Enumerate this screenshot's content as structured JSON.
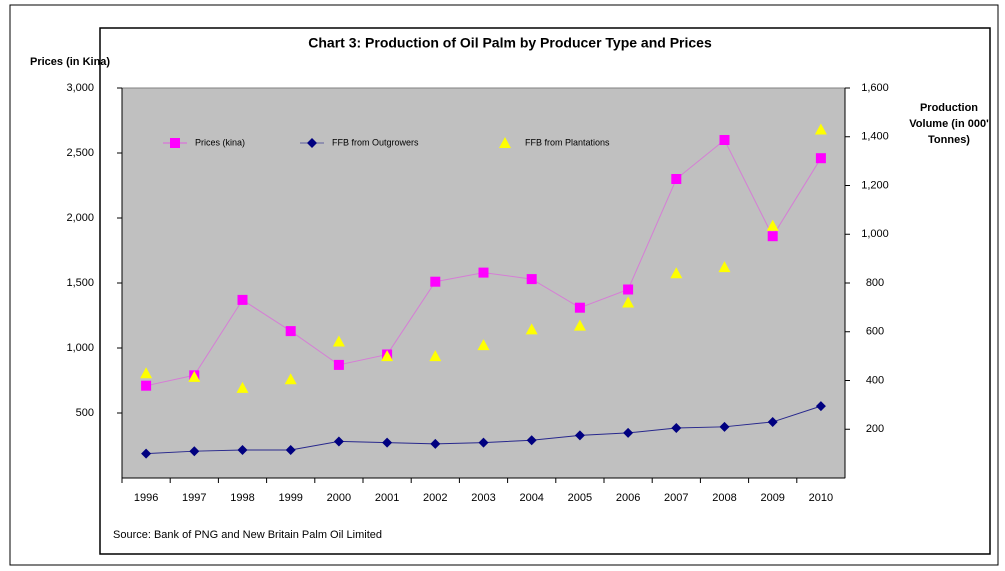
{
  "chart_data": {
    "type": "line",
    "title": "Chart 3: Production of Oil Palm by Producer Type and Prices",
    "y_label": "Prices (in Kina)",
    "y2_label": "Production Volume (in 000' Tonnes)",
    "source": "Source: Bank of PNG and New Britain Palm Oil Limited",
    "categories": [
      "1996",
      "1997",
      "1998",
      "1999",
      "2000",
      "2001",
      "2002",
      "2003",
      "2004",
      "2005",
      "2006",
      "2007",
      "2008",
      "2009",
      "2010"
    ],
    "ylim": [
      0,
      3000
    ],
    "yticks": [
      500,
      {
        "value": 1000,
        "label": "1,000"
      },
      {
        "value": 1500,
        "label": "1,500"
      },
      {
        "value": 2000,
        "label": "2,000"
      },
      {
        "value": 2500,
        "label": "2,500"
      },
      {
        "value": 3000,
        "label": "3,000"
      }
    ],
    "y2lim": [
      0,
      1600
    ],
    "y2ticks": [
      200,
      400,
      600,
      800,
      {
        "value": 1000,
        "label": "1,000"
      },
      {
        "value": 1200,
        "label": "1,200"
      },
      {
        "value": 1400,
        "label": "1,400"
      },
      {
        "value": 1600,
        "label": "1,600"
      }
    ],
    "legend": "top",
    "plot_background": "#c0c0c0",
    "series": [
      {
        "name": "Prices (kina)",
        "color": "#ff00ff",
        "marker": "square",
        "line": true,
        "values": [
          710,
          790,
          1370,
          1130,
          870,
          950,
          1510,
          1580,
          1530,
          1310,
          1450,
          2300,
          2600,
          1860,
          2460
        ]
      },
      {
        "name": "FFB from Outgrowers",
        "color": "#000080",
        "marker": "diamond",
        "line": true,
        "axis": "y2",
        "values": [
          100,
          110,
          115,
          115,
          150,
          145,
          140,
          145,
          155,
          175,
          185,
          205,
          210,
          230,
          295
        ]
      },
      {
        "name": "FFB from Plantations",
        "color": "#ffff00",
        "marker": "triangle",
        "line": false,
        "axis": "y2",
        "values": [
          430,
          415,
          370,
          405,
          560,
          500,
          500,
          545,
          610,
          625,
          720,
          840,
          865,
          1035,
          1430
        ]
      }
    ]
  }
}
